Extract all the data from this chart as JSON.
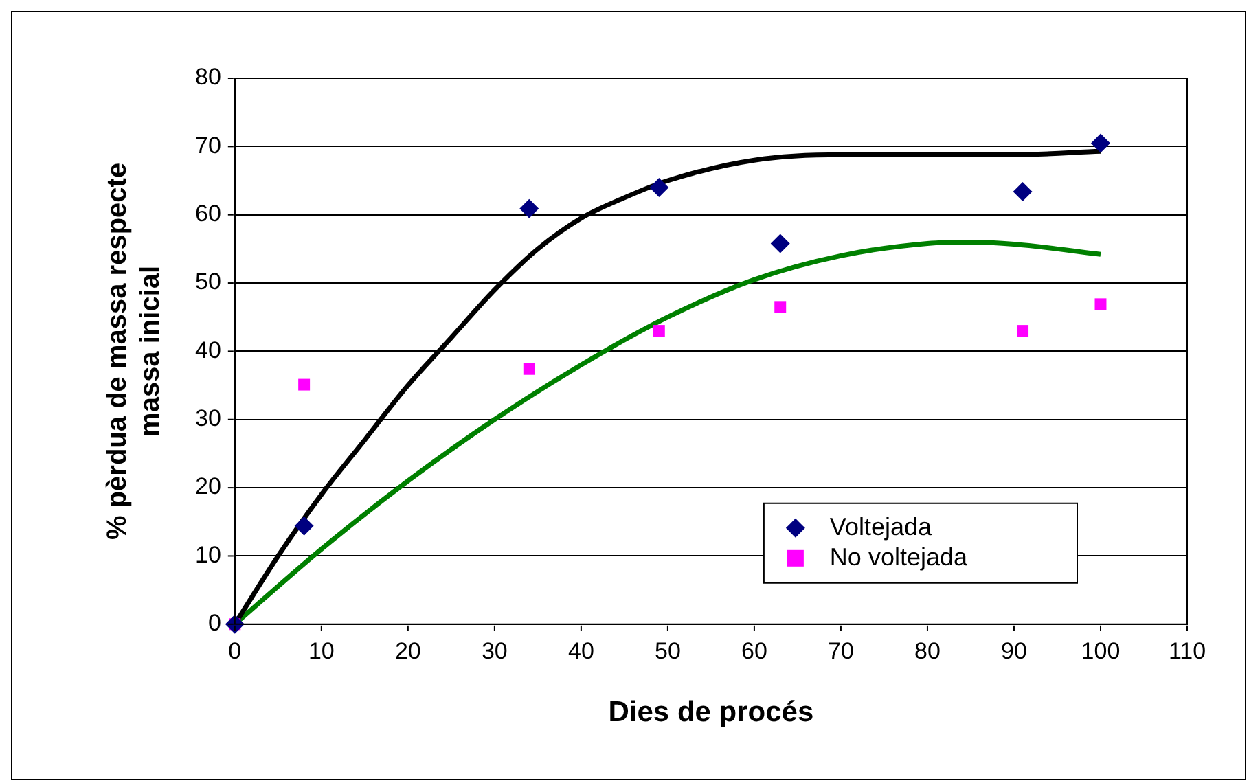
{
  "chart_data": {
    "type": "scatter",
    "xlabel": "Dies de procés",
    "ylabel": "% pèrdua de massa respecte massa inicial",
    "xlim": [
      0,
      110
    ],
    "xticks": [
      0,
      10,
      20,
      30,
      40,
      50,
      60,
      70,
      80,
      90,
      100,
      110
    ],
    "ylim": [
      0,
      80
    ],
    "yticks": [
      0,
      10,
      20,
      30,
      40,
      50,
      60,
      70,
      80
    ],
    "grid": "y",
    "legend": "bottom right",
    "series": [
      {
        "name": "Voltejada",
        "marker": "diamond",
        "color": "#000080",
        "x": [
          0,
          8,
          34,
          49,
          63,
          91,
          100
        ],
        "values": [
          0,
          14.4,
          60.9,
          64,
          55.8,
          63.4,
          70.5
        ]
      },
      {
        "name": "No voltejada",
        "marker": "square",
        "color": "#ff00ff",
        "x": [
          0,
          8,
          34,
          49,
          63,
          91,
          100
        ],
        "values": [
          0,
          35.1,
          37.4,
          43,
          46.5,
          43,
          46.9
        ]
      },
      {
        "type": "line",
        "marker": "none",
        "color": "#000000",
        "x": [
          0,
          5,
          10,
          15,
          20,
          25,
          30,
          35,
          40,
          45,
          50,
          60,
          70,
          80,
          90,
          100
        ],
        "values": [
          0,
          10,
          19,
          27,
          35,
          42,
          49,
          55,
          59.5,
          62.5,
          65,
          68,
          68.8,
          68.8,
          68.8,
          69.3
        ]
      },
      {
        "type": "line",
        "marker": "none",
        "color": "#008000",
        "x": [
          0,
          10,
          20,
          30,
          40,
          50,
          60,
          70,
          80,
          85,
          90,
          100
        ],
        "values": [
          0,
          11,
          21,
          30,
          38,
          45,
          50.5,
          54,
          55.8,
          56,
          55.7,
          54.2
        ]
      }
    ]
  }
}
